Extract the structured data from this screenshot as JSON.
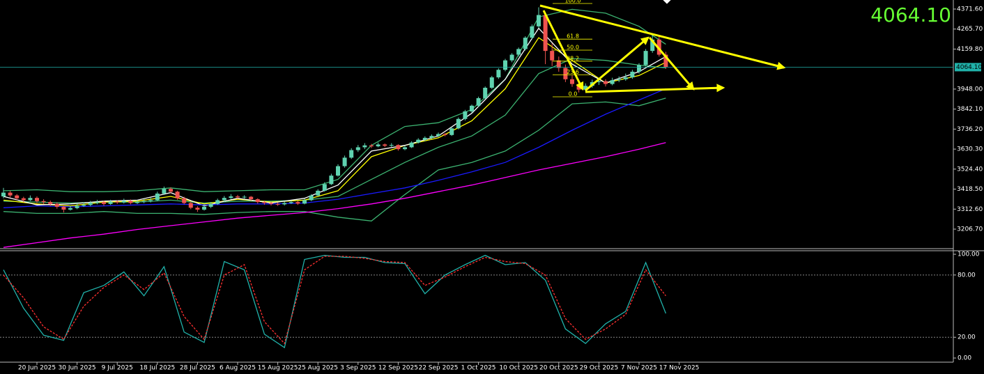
{
  "chart_data": [
    {
      "type": "candlestick",
      "ylim": [
        3103.5,
        4419.5
      ],
      "yticks": [
        {
          "value": 4371.6,
          "label": "4371.60"
        },
        {
          "value": 4265.7,
          "label": "4265.70"
        },
        {
          "value": 4159.8,
          "label": "4159.80"
        },
        {
          "value": 3948,
          "label": "3948.00"
        },
        {
          "value": 3842.1,
          "label": "3842.10"
        },
        {
          "value": 3736.2,
          "label": "3736.20"
        },
        {
          "value": 3630.3,
          "label": "3630.30"
        },
        {
          "value": 3524.4,
          "label": "3524.40"
        },
        {
          "value": 3418.5,
          "label": "3418.50"
        },
        {
          "value": 3312.6,
          "label": "3312.60"
        },
        {
          "value": 3206.7,
          "label": "3206.70"
        }
      ],
      "categories": [
        null,
        null,
        null,
        null,
        null,
        "20 Jun 2025",
        null,
        null,
        null,
        null,
        null,
        "30 Jun 2025",
        null,
        null,
        null,
        null,
        null,
        "9 Jul 2025",
        null,
        null,
        null,
        null,
        null,
        "18 Jul 2025",
        null,
        null,
        null,
        null,
        null,
        "28 Jul 2025",
        null,
        null,
        null,
        null,
        null,
        "6 Aug 2025",
        null,
        null,
        null,
        null,
        null,
        "15 Aug 2025",
        null,
        null,
        null,
        null,
        null,
        "25 Aug 2025",
        null,
        null,
        null,
        null,
        null,
        "3 Sep 2025",
        null,
        null,
        null,
        null,
        null,
        "12 Sep 2025",
        null,
        null,
        null,
        null,
        null,
        "22 Sep 2025",
        null,
        null,
        null,
        null,
        null,
        "1 Oct 2025",
        null,
        null,
        null,
        null,
        null,
        "10 Oct 2025",
        null,
        null,
        null,
        null,
        null,
        "20 Oct 2025",
        null,
        null,
        null,
        null,
        null,
        "29 Oct 2025",
        null,
        null,
        null,
        null,
        null,
        "7 Nov 2025",
        null,
        null,
        null,
        null,
        null,
        "17 Nov 2025"
      ],
      "up_color": "#5fd3b0",
      "down_color": "#ef5350",
      "candles": [
        [
          3380,
          3425,
          3370,
          3400
        ],
        [
          3400,
          3410,
          3375,
          3385
        ],
        [
          3385,
          3392,
          3360,
          3370
        ],
        [
          3370,
          3378,
          3350,
          3360
        ],
        [
          3360,
          3385,
          3355,
          3372
        ],
        [
          3372,
          3380,
          3345,
          3355
        ],
        [
          3355,
          3365,
          3340,
          3350
        ],
        [
          3350,
          3358,
          3330,
          3340
        ],
        [
          3340,
          3348,
          3315,
          3325
        ],
        [
          3325,
          3332,
          3295,
          3310
        ],
        [
          3310,
          3330,
          3305,
          3318
        ],
        [
          3318,
          3342,
          3312,
          3330
        ],
        [
          3330,
          3348,
          3325,
          3335
        ],
        [
          3335,
          3356,
          3328,
          3345
        ],
        [
          3345,
          3362,
          3338,
          3350
        ],
        [
          3350,
          3358,
          3330,
          3340
        ],
        [
          3340,
          3362,
          3335,
          3352
        ],
        [
          3352,
          3360,
          3340,
          3348
        ],
        [
          3348,
          3368,
          3342,
          3356
        ],
        [
          3356,
          3364,
          3338,
          3345
        ],
        [
          3345,
          3360,
          3340,
          3350
        ],
        [
          3350,
          3366,
          3344,
          3355
        ],
        [
          3355,
          3372,
          3348,
          3360
        ],
        [
          3360,
          3405,
          3355,
          3395
        ],
        [
          3395,
          3432,
          3388,
          3420
        ],
        [
          3420,
          3428,
          3398,
          3405
        ],
        [
          3405,
          3410,
          3362,
          3370
        ],
        [
          3370,
          3378,
          3338,
          3345
        ],
        [
          3345,
          3352,
          3312,
          3320
        ],
        [
          3320,
          3328,
          3298,
          3310
        ],
        [
          3310,
          3335,
          3305,
          3325
        ],
        [
          3325,
          3350,
          3318,
          3340
        ],
        [
          3340,
          3368,
          3335,
          3360
        ],
        [
          3360,
          3382,
          3352,
          3372
        ],
        [
          3372,
          3392,
          3366,
          3380
        ],
        [
          3380,
          3388,
          3368,
          3375
        ],
        [
          3375,
          3386,
          3369,
          3378
        ],
        [
          3378,
          3382,
          3358,
          3365
        ],
        [
          3365,
          3370,
          3342,
          3350
        ],
        [
          3350,
          3358,
          3336,
          3345
        ],
        [
          3345,
          3352,
          3332,
          3340
        ],
        [
          3340,
          3348,
          3330,
          3338
        ],
        [
          3338,
          3352,
          3332,
          3345
        ],
        [
          3345,
          3358,
          3340,
          3350
        ],
        [
          3350,
          3356,
          3335,
          3342
        ],
        [
          3342,
          3368,
          3338,
          3360
        ],
        [
          3360,
          3392,
          3355,
          3385
        ],
        [
          3385,
          3418,
          3380,
          3410
        ],
        [
          3410,
          3455,
          3405,
          3445
        ],
        [
          3445,
          3500,
          3440,
          3490
        ],
        [
          3490,
          3550,
          3485,
          3540
        ],
        [
          3540,
          3596,
          3532,
          3585
        ],
        [
          3585,
          3635,
          3578,
          3625
        ],
        [
          3625,
          3652,
          3615,
          3640
        ],
        [
          3640,
          3662,
          3630,
          3650
        ],
        [
          3650,
          3658,
          3636,
          3645
        ],
        [
          3645,
          3665,
          3640,
          3655
        ],
        [
          3655,
          3660,
          3640,
          3648
        ],
        [
          3648,
          3662,
          3642,
          3652
        ],
        [
          3652,
          3656,
          3622,
          3630
        ],
        [
          3630,
          3648,
          3624,
          3640
        ],
        [
          3640,
          3672,
          3636,
          3665
        ],
        [
          3665,
          3688,
          3660,
          3680
        ],
        [
          3680,
          3698,
          3672,
          3690
        ],
        [
          3690,
          3708,
          3684,
          3700
        ],
        [
          3700,
          3718,
          3694,
          3710
        ],
        [
          3710,
          3715,
          3698,
          3705
        ],
        [
          3705,
          3748,
          3700,
          3740
        ],
        [
          3740,
          3798,
          3735,
          3790
        ],
        [
          3790,
          3838,
          3782,
          3830
        ],
        [
          3830,
          3866,
          3822,
          3860
        ],
        [
          3860,
          3908,
          3852,
          3900
        ],
        [
          3900,
          3962,
          3895,
          3955
        ],
        [
          3955,
          4018,
          3948,
          4010
        ],
        [
          4010,
          4058,
          4002,
          4050
        ],
        [
          4050,
          4108,
          4042,
          4100
        ],
        [
          4100,
          4138,
          4090,
          4130
        ],
        [
          4130,
          4168,
          4120,
          4160
        ],
        [
          4160,
          4228,
          4152,
          4220
        ],
        [
          4220,
          4290,
          4212,
          4280
        ],
        [
          4280,
          4381,
          4270,
          4340
        ],
        [
          4340,
          4350,
          4080,
          4150
        ],
        [
          4150,
          4190,
          4070,
          4100
        ],
        [
          4100,
          4120,
          4040,
          4060
        ],
        [
          4060,
          4078,
          3985,
          4000
        ],
        [
          4000,
          4020,
          3960,
          3975
        ],
        [
          3975,
          3990,
          3930,
          3945
        ],
        [
          3945,
          3978,
          3935,
          3965
        ],
        [
          3965,
          3998,
          3955,
          3985
        ],
        [
          3985,
          4005,
          3970,
          3990
        ],
        [
          3990,
          4000,
          3962,
          3975
        ],
        [
          3975,
          4008,
          3968,
          3995
        ],
        [
          3995,
          4015,
          3985,
          4000
        ],
        [
          4000,
          4030,
          3992,
          4010
        ],
        [
          4010,
          4050,
          4002,
          4040
        ],
        [
          4040,
          4085,
          4030,
          4075
        ],
        [
          4075,
          4160,
          4068,
          4150
        ],
        [
          4150,
          4240,
          4140,
          4210
        ],
        [
          4210,
          4225,
          4120,
          4130
        ],
        [
          4130,
          4145,
          4055,
          4064.1
        ],
        null,
        null
      ],
      "indicator_x": [
        0,
        5,
        10,
        15,
        20,
        25,
        30,
        35,
        40,
        45,
        50,
        55,
        60,
        65,
        70,
        75,
        80,
        85,
        90,
        95,
        99
      ],
      "indicators": [
        {
          "color": "#3cb371",
          "values": [
            3410,
            3415,
            3405,
            3405,
            3410,
            3425,
            3405,
            3410,
            3415,
            3415,
            3470,
            3650,
            3750,
            3770,
            3840,
            4000,
            4330,
            4370,
            4350,
            4280,
            4185
          ]
        },
        {
          "color": "#3cb371",
          "values": [
            3355,
            3350,
            3345,
            3350,
            3350,
            3360,
            3345,
            3355,
            3355,
            3360,
            3380,
            3470,
            3560,
            3640,
            3700,
            3810,
            4030,
            4110,
            4100,
            4075,
            4060
          ]
        },
        {
          "color": "#3cb371",
          "values": [
            3300,
            3290,
            3290,
            3300,
            3290,
            3290,
            3285,
            3295,
            3300,
            3300,
            3270,
            3250,
            3390,
            3520,
            3560,
            3620,
            3730,
            3870,
            3880,
            3860,
            3900
          ]
        },
        {
          "color": "#ffff00",
          "values": [
            3360,
            3340,
            3330,
            3350,
            3355,
            3380,
            3340,
            3365,
            3350,
            3360,
            3410,
            3590,
            3650,
            3690,
            3780,
            3950,
            4220,
            4100,
            3980,
            4020,
            4090
          ]
        },
        {
          "color": "#ffffff",
          "values": [
            3380,
            3335,
            3340,
            3355,
            3360,
            3400,
            3330,
            3370,
            3345,
            3370,
            3440,
            3620,
            3650,
            3700,
            3820,
            4000,
            4270,
            4080,
            3980,
            4040,
            4120
          ]
        },
        {
          "color": "#1a1aff",
          "values": [
            3320,
            3330,
            3325,
            3330,
            3335,
            3340,
            3335,
            3340,
            3340,
            3345,
            3365,
            3395,
            3425,
            3465,
            3510,
            3560,
            3640,
            3730,
            3815,
            3890,
            3950
          ]
        },
        {
          "color": "#ff00ff",
          "values": [
            3110,
            3135,
            3160,
            3180,
            3205,
            3225,
            3245,
            3265,
            3280,
            3295,
            3315,
            3340,
            3370,
            3405,
            3440,
            3480,
            3520,
            3555,
            3590,
            3630,
            3665
          ]
        }
      ],
      "last_price": {
        "value": 4064.1,
        "label": "4064.10"
      },
      "last_price_color": "#20b2aa",
      "big_price_color": "#66ff33",
      "fib": {
        "low": 3907,
        "high": 4401,
        "color": "#ffff00",
        "levels": [
          {
            "value": 100,
            "label": "100.0"
          },
          {
            "value": 61.8,
            "label": "61.8"
          },
          {
            "value": 50,
            "label": "50.0"
          },
          {
            "value": 38.2,
            "label": "38.2"
          },
          {
            "value": 23.6,
            "label": "23.6"
          },
          {
            "value": 0,
            "label": "0.0"
          }
        ]
      }
    },
    {
      "type": "line",
      "ylim": [
        -4,
        103.4
      ],
      "yticks": [
        {
          "value": 100,
          "label": "100.00"
        },
        {
          "value": 80,
          "label": "80.00"
        },
        {
          "value": 20,
          "label": "20.00"
        },
        {
          "value": 0,
          "label": "0.00"
        }
      ],
      "levels": [
        80,
        20
      ],
      "x": [
        0,
        3,
        6,
        9,
        12,
        15,
        18,
        21,
        24,
        27,
        30,
        33,
        36,
        39,
        42,
        45,
        48,
        51,
        54,
        57,
        60,
        63,
        66,
        69,
        72,
        75,
        78,
        81,
        84,
        87,
        90,
        93,
        96,
        99
      ],
      "series": [
        {
          "color": "#20b2aa",
          "dash": false,
          "values": [
            85,
            48,
            22,
            17,
            63,
            70,
            83,
            60,
            88,
            25,
            15,
            93,
            85,
            23,
            10,
            95,
            99,
            97,
            97,
            92,
            91,
            62,
            80,
            90,
            99,
            90,
            92,
            75,
            28,
            14,
            33,
            45,
            92,
            43
          ]
        },
        {
          "color": "#ff3030",
          "dash": true,
          "values": [
            80,
            58,
            30,
            18,
            50,
            68,
            80,
            66,
            82,
            40,
            18,
            80,
            90,
            35,
            14,
            85,
            98,
            98,
            96,
            93,
            92,
            70,
            78,
            88,
            97,
            93,
            91,
            80,
            38,
            18,
            28,
            42,
            85,
            60
          ]
        }
      ]
    }
  ]
}
